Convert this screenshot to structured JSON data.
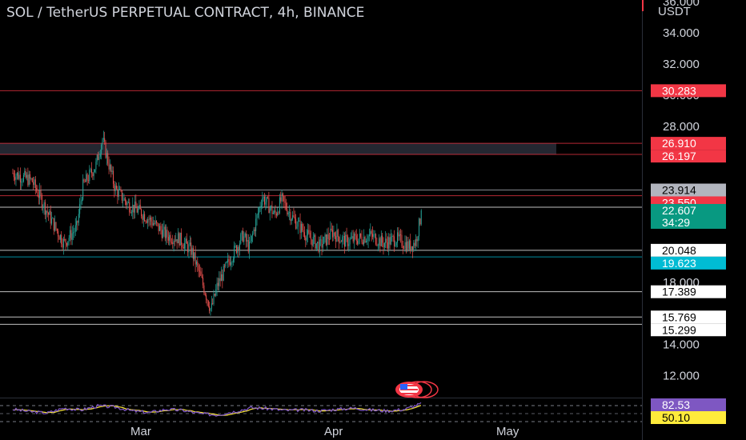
{
  "header": {
    "title": "SOL / TetherUS PERPETUAL CONTRACT, 4h, BINANCE",
    "currency": "USDT"
  },
  "chart_data": {
    "type": "candlestick",
    "symbol": "SOL / TetherUS PERPETUAL CONTRACT",
    "interval": "4h",
    "exchange": "BINANCE",
    "y_axis_ticks": [
      "36.000",
      "34.000",
      "32.000",
      "30.000",
      "28.000",
      "18.000",
      "14.000",
      "12.000"
    ],
    "x_axis_labels": [
      "Mar",
      "Apr",
      "May"
    ],
    "ylim": [
      10.6,
      36.1
    ],
    "price_lines": [
      {
        "label": "30.283",
        "value": 30.283,
        "color": "#f23645"
      },
      {
        "label": "26.910",
        "value": 26.91,
        "color": "#f23645"
      },
      {
        "label": "26.197",
        "value": 26.197,
        "color": "#f23645"
      },
      {
        "label": "23.914",
        "value": 23.914,
        "color": "#b2b5be"
      },
      {
        "label": "23.550",
        "value": 23.55,
        "color": "#f23645"
      },
      {
        "label": "22.813",
        "value": 22.813,
        "color": "#ffffff"
      },
      {
        "label": "20.048",
        "value": 20.048,
        "color": "#ffffff"
      },
      {
        "label": "19.623",
        "value": 19.623,
        "color": "#00bcd4"
      },
      {
        "label": "17.389",
        "value": 17.389,
        "color": "#ffffff"
      },
      {
        "label": "15.769",
        "value": 15.769,
        "color": "#ffffff"
      },
      {
        "label": "15.299",
        "value": 15.299,
        "color": "#ffffff"
      }
    ],
    "resistance_zone": {
      "from": 26.197,
      "to": 26.91
    },
    "last_price": {
      "value": 22.607,
      "label": "22.607",
      "countdown": "34:29",
      "color": "#089981"
    },
    "price_path": [
      {
        "date": "2023-02-07",
        "price": 25.0
      },
      {
        "date": "2023-02-10",
        "price": 24.5
      },
      {
        "date": "2023-02-13",
        "price": 22.0
      },
      {
        "date": "2023-02-15",
        "price": 20.5
      },
      {
        "date": "2023-02-17",
        "price": 21.5
      },
      {
        "date": "2023-02-18",
        "price": 24.2
      },
      {
        "date": "2023-02-20",
        "price": 25.5
      },
      {
        "date": "2023-02-21",
        "price": 27.2
      },
      {
        "date": "2023-02-23",
        "price": 24.0
      },
      {
        "date": "2023-02-25",
        "price": 23.0
      },
      {
        "date": "2023-02-27",
        "price": 22.5
      },
      {
        "date": "2023-03-01",
        "price": 21.8
      },
      {
        "date": "2023-03-03",
        "price": 21.0
      },
      {
        "date": "2023-03-05",
        "price": 20.8
      },
      {
        "date": "2023-03-07",
        "price": 20.0
      },
      {
        "date": "2023-03-09",
        "price": 17.5
      },
      {
        "date": "2023-03-10",
        "price": 16.2
      },
      {
        "date": "2023-03-11",
        "price": 17.8
      },
      {
        "date": "2023-03-13",
        "price": 19.5
      },
      {
        "date": "2023-03-15",
        "price": 21.0
      },
      {
        "date": "2023-03-16",
        "price": 20.2
      },
      {
        "date": "2023-03-18",
        "price": 23.5
      },
      {
        "date": "2023-03-20",
        "price": 22.3
      },
      {
        "date": "2023-03-21",
        "price": 23.3
      },
      {
        "date": "2023-03-23",
        "price": 22.0
      },
      {
        "date": "2023-03-25",
        "price": 21.0
      },
      {
        "date": "2023-03-27",
        "price": 20.3
      },
      {
        "date": "2023-03-29",
        "price": 21.2
      },
      {
        "date": "2023-03-31",
        "price": 20.6
      },
      {
        "date": "2023-04-02",
        "price": 20.8
      },
      {
        "date": "2023-04-04",
        "price": 21.0
      },
      {
        "date": "2023-04-06",
        "price": 20.5
      },
      {
        "date": "2023-04-08",
        "price": 20.8
      },
      {
        "date": "2023-04-10",
        "price": 20.3
      },
      {
        "date": "2023-04-11",
        "price": 20.6
      },
      {
        "date": "2023-04-12",
        "price": 22.6
      }
    ],
    "rsi": {
      "values": [
        55,
        45,
        38,
        60,
        52,
        70,
        65,
        48,
        40,
        55,
        50,
        35,
        30,
        45,
        62,
        58,
        50,
        52,
        48,
        55,
        60,
        52,
        48,
        55,
        82
      ],
      "rsi_label": "82.53",
      "ma_label": "50.10",
      "rsi_color": "#7e57c2",
      "ma_color": "#ffeb3b"
    }
  }
}
